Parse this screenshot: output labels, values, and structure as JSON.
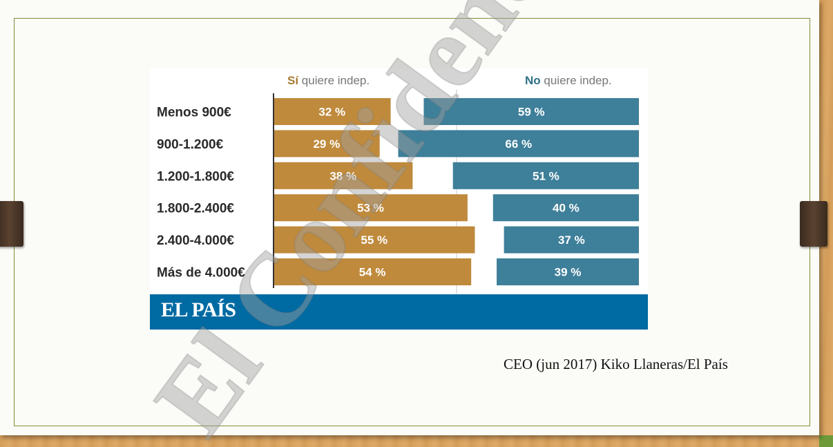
{
  "chart_data": {
    "type": "bar",
    "categories": [
      "Menos 900€",
      "900-1.200€",
      "1.200-1.800€",
      "1.800-2.400€",
      "2.400-4.000€",
      "Más de 4.000€"
    ],
    "series": [
      {
        "name": "Sí quiere indep.",
        "values": [
          32,
          29,
          38,
          53,
          55,
          54
        ]
      },
      {
        "name": "No quiere indep.",
        "values": [
          59,
          66,
          51,
          40,
          37,
          39
        ]
      }
    ],
    "legend": {
      "si": {
        "bold": "Sí",
        "rest": "quiere indep."
      },
      "no": {
        "bold": "No",
        "rest": "quiere indep."
      }
    },
    "value_suffix": " %",
    "colors": {
      "si": "#bf8a3c",
      "no": "#3e7f99",
      "legend_si": "#a87a30",
      "legend_no": "#2f6f88"
    }
  },
  "brand": "EL PAÍS",
  "brand_color": "#006aa3",
  "source": "CEO (jun 2017) Kiko Llaneras/El País",
  "watermark": "El Confidencial"
}
